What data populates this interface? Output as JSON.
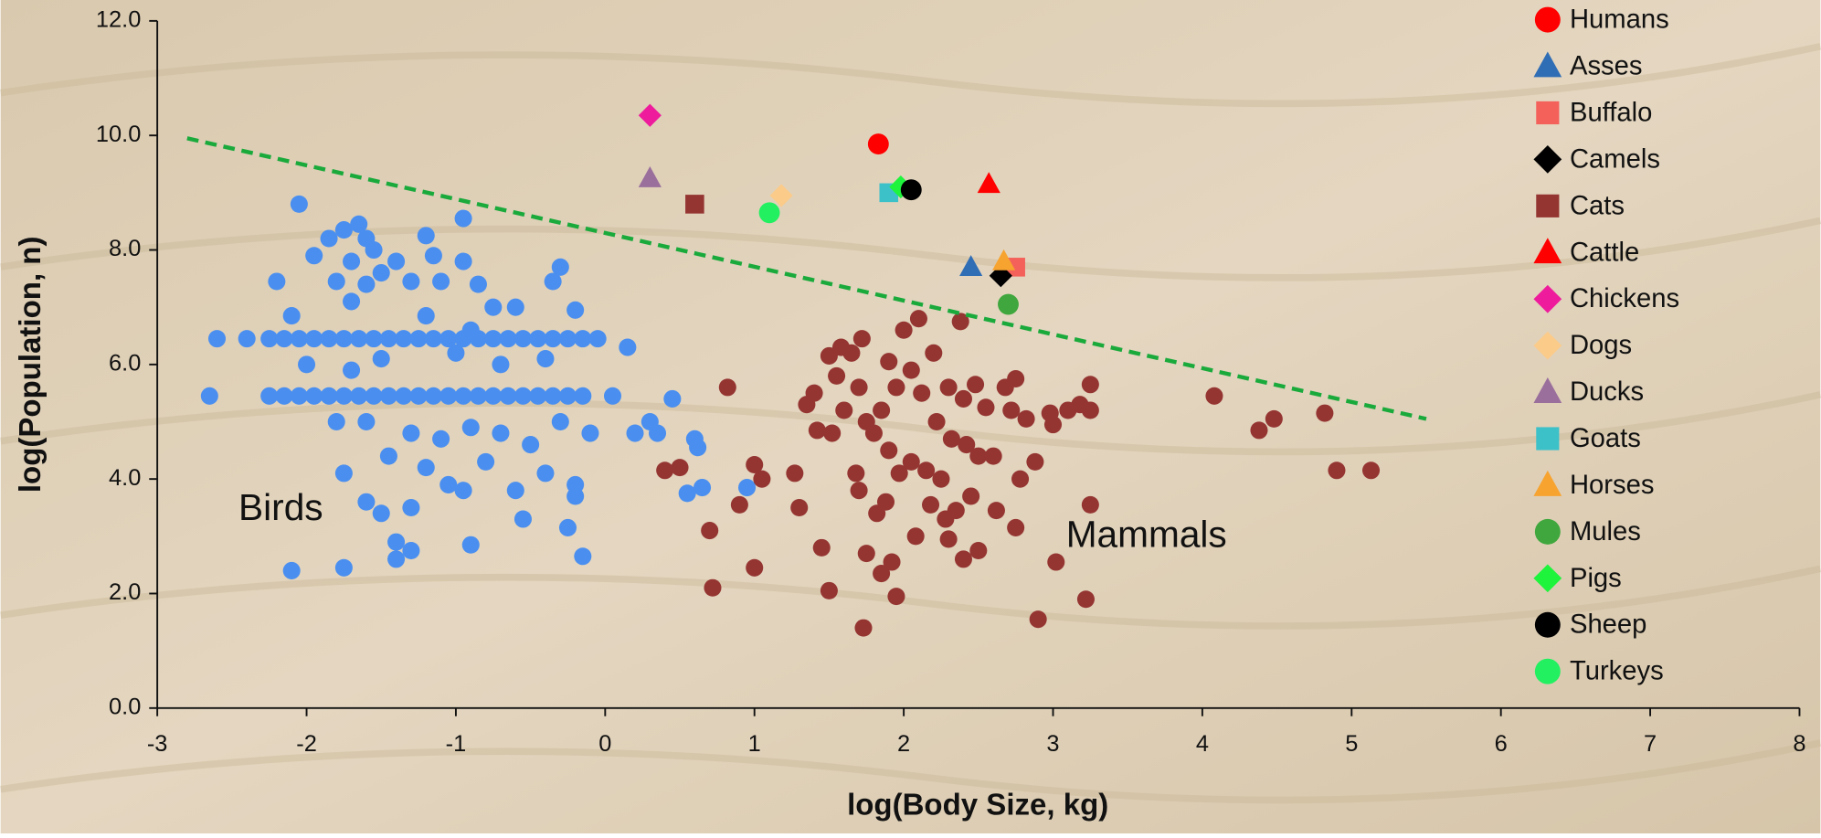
{
  "chart_data": {
    "type": "scatter",
    "x_label": "log(Body Size, kg)",
    "y_label": "log(Population, n)",
    "xlim": [
      -3,
      8
    ],
    "xticks": [
      -3,
      -2,
      -1,
      0,
      1,
      2,
      3,
      4,
      5,
      6,
      7,
      8
    ],
    "ylim": [
      0,
      12
    ],
    "yticks": [
      {
        "value": 0,
        "label": "0.0"
      },
      {
        "value": 2,
        "label": "2.0"
      },
      {
        "value": 4,
        "label": "4.0"
      },
      {
        "value": 6,
        "label": "6.0"
      },
      {
        "value": 8,
        "label": "8.0"
      },
      {
        "value": 10,
        "label": "10.0"
      },
      {
        "value": 12,
        "label": "12.0"
      }
    ],
    "legend": "upper right",
    "reference_line": {
      "color": "#1aaa3c",
      "x": [
        -2.8,
        5.5
      ],
      "y": [
        9.95,
        5.05
      ]
    },
    "groups": [
      {
        "label": "Birds",
        "color": "#4a8ff0",
        "x": [
          -2.6,
          -2.4,
          -2.25,
          -2.15,
          -2.05,
          -1.95,
          -1.85,
          -1.75,
          -1.65,
          -1.55,
          -1.45,
          -1.35,
          -1.25,
          -1.15,
          -1.05,
          -0.95,
          -0.85,
          -0.75,
          -0.65,
          -0.55,
          -0.45,
          -0.35,
          -0.25,
          -0.15,
          -0.05,
          -2.65,
          -2.25,
          -2.15,
          -2.05,
          -1.95,
          -1.85,
          -1.75,
          -1.65,
          -1.55,
          -1.45,
          -1.35,
          -1.25,
          -1.15,
          -1.05,
          -0.95,
          -0.85,
          -0.75,
          -0.65,
          -0.55,
          -0.45,
          -0.35,
          -0.25,
          -0.15,
          0.05,
          -2.05,
          -1.95,
          -1.85,
          -1.75,
          -1.7,
          -1.65,
          -1.6,
          -1.55,
          -1.5,
          -1.6,
          -1.7,
          -1.4,
          -1.2,
          -1.15,
          -0.95,
          -0.95,
          -0.85,
          -0.75,
          -0.35,
          -0.3,
          -2.2,
          -2.1,
          -1.8,
          -1.3,
          -1.1,
          -0.6,
          -0.2,
          -1.2,
          -0.9,
          -2.0,
          -1.7,
          -1.5,
          -1.0,
          -0.7,
          -0.4,
          0.15,
          -1.6,
          -1.8,
          -1.3,
          -1.1,
          -0.9,
          -0.7,
          -0.5,
          -0.3,
          -0.1,
          0.2,
          0.3,
          0.45,
          -1.75,
          -1.45,
          -1.2,
          -0.95,
          -0.8,
          -0.6,
          -0.4,
          -0.2,
          -1.6,
          -1.5,
          -1.3,
          -1.05,
          -0.55,
          -0.2,
          -1.4,
          -1.3,
          -0.9,
          -0.25,
          -2.1,
          -1.75,
          -1.4,
          -0.15,
          0.35,
          0.6,
          0.65,
          0.55,
          0.95,
          0.62
        ],
        "y": [
          6.45,
          6.45,
          6.45,
          6.45,
          6.45,
          6.45,
          6.45,
          6.45,
          6.45,
          6.45,
          6.45,
          6.45,
          6.45,
          6.45,
          6.45,
          6.45,
          6.45,
          6.45,
          6.45,
          6.45,
          6.45,
          6.45,
          6.45,
          6.45,
          6.45,
          5.45,
          5.45,
          5.45,
          5.45,
          5.45,
          5.45,
          5.45,
          5.45,
          5.45,
          5.45,
          5.45,
          5.45,
          5.45,
          5.45,
          5.45,
          5.45,
          5.45,
          5.45,
          5.45,
          5.45,
          5.45,
          5.45,
          5.45,
          5.45,
          8.8,
          7.9,
          8.2,
          8.35,
          7.8,
          8.45,
          8.2,
          8.0,
          7.6,
          7.4,
          7.1,
          7.8,
          8.25,
          7.9,
          8.55,
          7.8,
          7.4,
          7.0,
          7.45,
          7.7,
          7.45,
          6.85,
          7.45,
          7.45,
          7.45,
          7.0,
          6.95,
          6.85,
          6.6,
          6.0,
          5.9,
          6.1,
          6.2,
          6.0,
          6.1,
          6.3,
          5.0,
          5.0,
          4.8,
          4.7,
          4.9,
          4.8,
          4.6,
          5.0,
          4.8,
          4.8,
          5.0,
          5.4,
          4.1,
          4.4,
          4.2,
          3.8,
          4.3,
          3.8,
          4.1,
          3.9,
          3.6,
          3.4,
          3.5,
          3.9,
          3.3,
          3.7,
          2.9,
          2.75,
          2.85,
          3.15,
          2.4,
          2.45,
          2.6,
          2.65,
          4.8,
          4.7,
          3.85,
          3.75,
          3.85,
          4.55
        ]
      },
      {
        "label": "Mammals",
        "color": "#953532",
        "x": [
          0.82,
          0.4,
          0.5,
          0.7,
          0.9,
          1.0,
          1.05,
          0.72,
          1.0,
          1.27,
          1.3,
          1.35,
          1.4,
          1.42,
          1.45,
          1.5,
          1.55,
          1.58,
          1.6,
          1.52,
          1.5,
          1.65,
          1.7,
          1.72,
          1.75,
          1.68,
          1.7,
          1.75,
          1.73,
          1.8,
          1.85,
          1.82,
          1.85,
          1.9,
          1.9,
          1.88,
          1.92,
          1.95,
          1.97,
          1.95,
          2.0,
          2.05,
          2.05,
          2.08,
          2.1,
          2.12,
          2.15,
          2.18,
          2.2,
          2.22,
          2.25,
          2.28,
          2.3,
          2.32,
          2.35,
          2.3,
          2.38,
          2.4,
          2.42,
          2.45,
          2.4,
          2.48,
          2.5,
          2.5,
          2.55,
          2.6,
          2.62,
          2.68,
          2.72,
          2.75,
          2.78,
          2.75,
          2.82,
          2.88,
          2.9,
          2.98,
          3.0,
          3.02,
          3.1,
          3.18,
          3.25,
          3.25,
          3.25,
          3.22,
          4.08,
          4.38,
          4.48,
          4.82,
          4.9,
          5.13
        ],
        "y": [
          5.6,
          4.15,
          4.2,
          3.1,
          3.55,
          4.25,
          4.0,
          2.1,
          2.45,
          4.1,
          3.5,
          5.3,
          5.5,
          4.85,
          2.8,
          6.15,
          5.8,
          6.3,
          5.2,
          4.8,
          2.05,
          6.2,
          5.6,
          6.45,
          5.0,
          4.1,
          3.8,
          2.7,
          1.4,
          4.8,
          5.2,
          3.4,
          2.35,
          6.05,
          4.5,
          3.6,
          2.55,
          5.6,
          4.1,
          1.95,
          6.6,
          5.9,
          4.3,
          3.0,
          6.8,
          5.5,
          4.15,
          3.55,
          6.2,
          5.0,
          4.0,
          3.3,
          5.6,
          4.7,
          3.45,
          2.95,
          6.75,
          5.4,
          4.6,
          3.7,
          2.6,
          5.65,
          4.4,
          2.75,
          5.25,
          4.4,
          3.45,
          5.6,
          5.2,
          5.75,
          4.0,
          3.15,
          5.05,
          4.3,
          1.55,
          5.15,
          4.95,
          2.55,
          5.2,
          5.3,
          5.65,
          5.2,
          3.55,
          1.9,
          5.45,
          4.85,
          5.05,
          5.15,
          4.15,
          4.15
        ]
      }
    ],
    "series": [
      {
        "name": "Humans",
        "color": "#ff0000",
        "marker": "circle",
        "x": [
          1.83
        ],
        "y": [
          9.85
        ]
      },
      {
        "name": "Asses",
        "color": "#2f6db5",
        "marker": "triangle",
        "x": [
          2.45
        ],
        "y": [
          7.7
        ]
      },
      {
        "name": "Buffalo",
        "color": "#f4615b",
        "marker": "square",
        "x": [
          2.75
        ],
        "y": [
          7.7
        ]
      },
      {
        "name": "Camels",
        "color": "#000000",
        "marker": "diamond",
        "x": [
          2.65
        ],
        "y": [
          7.55
        ]
      },
      {
        "name": "Cats",
        "color": "#953532",
        "marker": "square",
        "x": [
          0.6
        ],
        "y": [
          8.8
        ]
      },
      {
        "name": "Cattle",
        "color": "#ff0000",
        "marker": "triangle",
        "x": [
          2.57
        ],
        "y": [
          9.15
        ]
      },
      {
        "name": "Chickens",
        "color": "#ee1c9c",
        "marker": "diamond",
        "x": [
          0.3
        ],
        "y": [
          10.35
        ]
      },
      {
        "name": "Dogs",
        "color": "#fbcb8a",
        "marker": "diamond",
        "x": [
          1.18
        ],
        "y": [
          8.95
        ]
      },
      {
        "name": "Ducks",
        "color": "#9a6f9c",
        "marker": "triangle",
        "x": [
          0.3
        ],
        "y": [
          9.25
        ]
      },
      {
        "name": "Goats",
        "color": "#3cc1c9",
        "marker": "square",
        "x": [
          1.9
        ],
        "y": [
          9.0
        ]
      },
      {
        "name": "Horses",
        "color": "#f7a32f",
        "marker": "triangle",
        "x": [
          2.67
        ],
        "y": [
          7.8
        ]
      },
      {
        "name": "Mules",
        "color": "#3fa73d",
        "marker": "circle",
        "x": [
          2.7
        ],
        "y": [
          7.05
        ]
      },
      {
        "name": "Pigs",
        "color": "#1ef43c",
        "marker": "diamond",
        "x": [
          1.98
        ],
        "y": [
          9.1
        ]
      },
      {
        "name": "Sheep",
        "color": "#000000",
        "marker": "circle",
        "x": [
          2.05
        ],
        "y": [
          9.05
        ]
      },
      {
        "name": "Turkeys",
        "color": "#22f060",
        "marker": "circle",
        "x": [
          1.1
        ],
        "y": [
          8.65
        ]
      }
    ]
  }
}
